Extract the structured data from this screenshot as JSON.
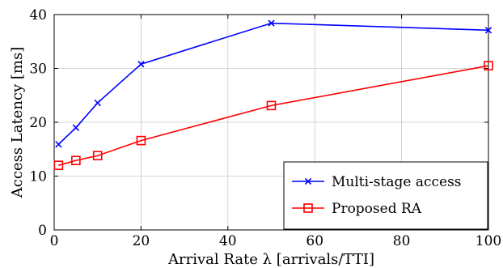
{
  "chart_data": {
    "type": "line",
    "title": "",
    "xlabel": "Arrival Rate λ [arrivals/TTI]",
    "ylabel": "Access Latency [ms]",
    "xlim": [
      0,
      100
    ],
    "ylim": [
      0,
      40
    ],
    "xticks": [
      0,
      20,
      40,
      60,
      80,
      100
    ],
    "yticks": [
      0,
      10,
      20,
      30,
      40
    ],
    "grid": true,
    "legend_position": "bottom-right",
    "series": [
      {
        "name": "Multi-stage access",
        "color": "#0000ff",
        "marker": "x",
        "x": [
          1,
          5,
          10,
          20,
          50,
          100
        ],
        "y": [
          15.9,
          19.0,
          23.6,
          30.8,
          38.4,
          37.1
        ]
      },
      {
        "name": "Proposed RA",
        "color": "#ff0000",
        "marker": "square",
        "x": [
          1,
          5,
          10,
          20,
          50,
          100
        ],
        "y": [
          12.0,
          12.9,
          13.8,
          16.6,
          23.1,
          30.5
        ]
      }
    ]
  }
}
